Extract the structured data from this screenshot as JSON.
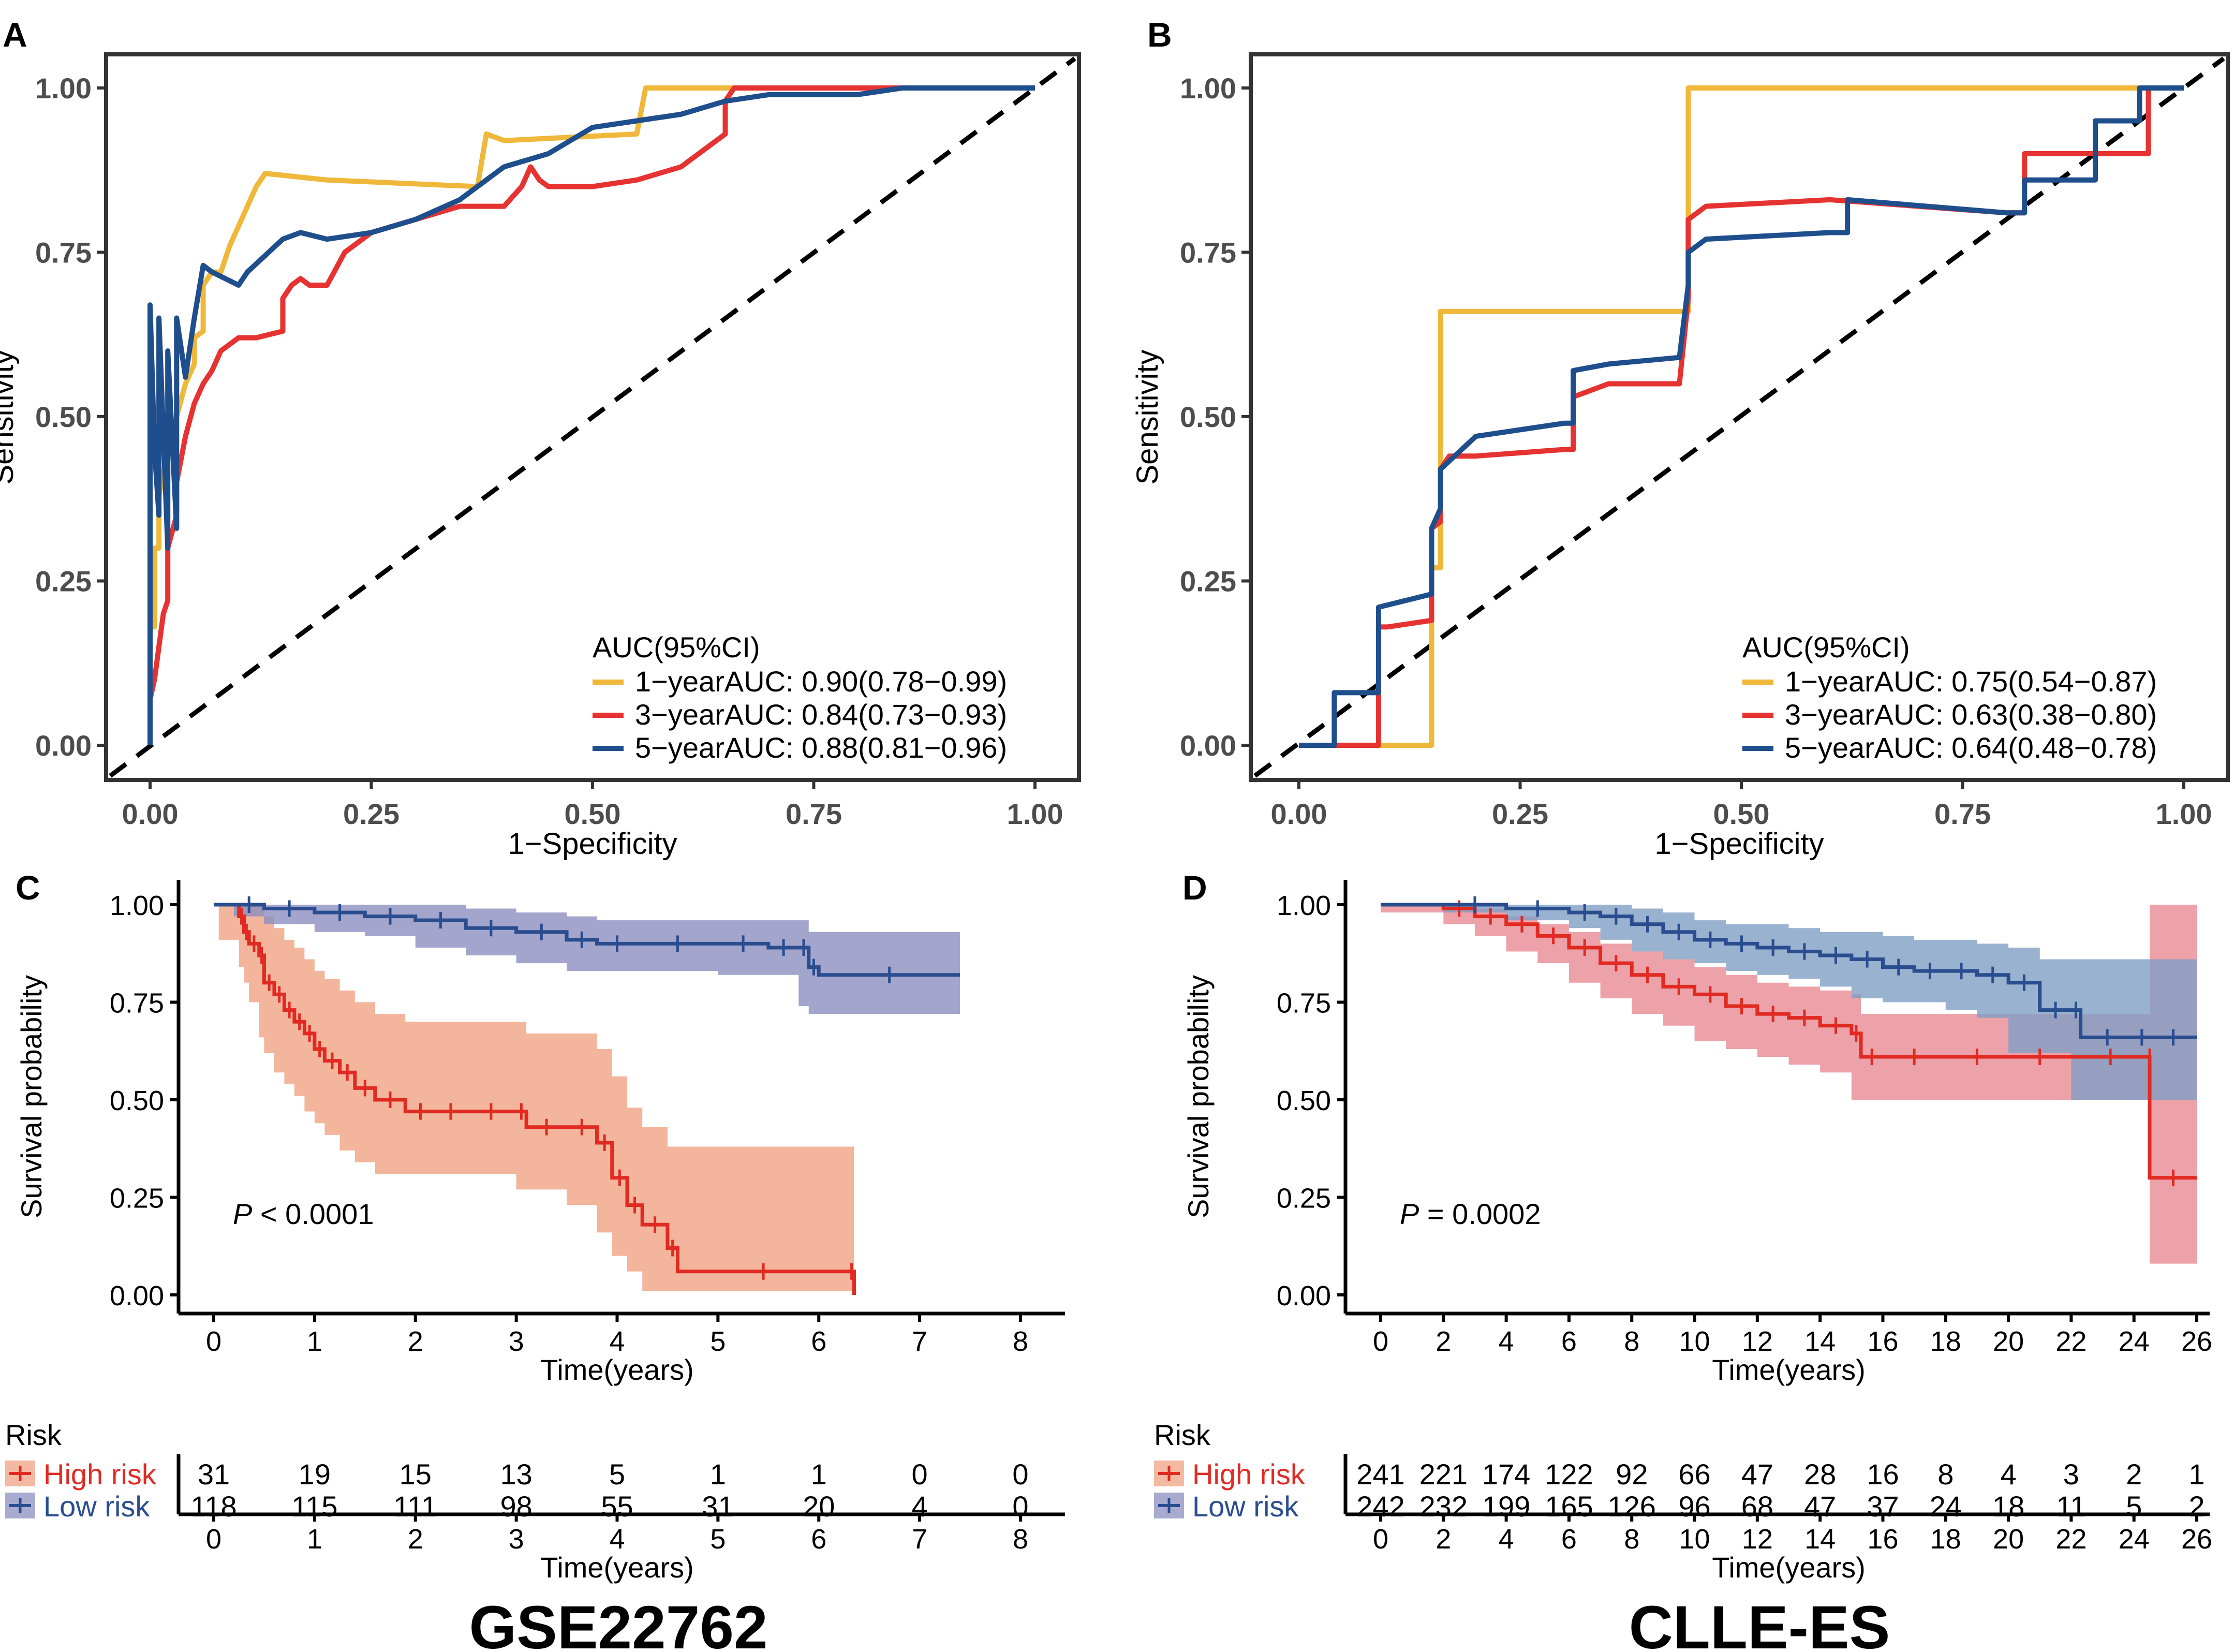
{
  "colors": {
    "year1": "#EFB83A",
    "year3": "#E63331",
    "year5": "#1F4E8C",
    "high": "#E02A22",
    "low": "#2A4D8F",
    "high_band": "#F0A283",
    "low_band": "#8C8EC0",
    "high_band_d": "#E98A94",
    "low_band_d": "#7F9FC4"
  },
  "chart_data": [
    {
      "panel": "A",
      "type": "line",
      "kind": "roc",
      "xlabel": "1−Specificity",
      "ylabel": "Sensitivity",
      "xlim": [
        0,
        1
      ],
      "ylim": [
        0,
        1
      ],
      "ticks": [
        "0.00",
        "0.25",
        "0.50",
        "0.75",
        "1.00"
      ],
      "legend_title": "AUC(95%CI)",
      "legend": [
        {
          "label": "1−yearAUC: 0.90(0.78−0.99)",
          "color": "year1"
        },
        {
          "label": "3−yearAUC: 0.84(0.73−0.93)",
          "color": "year3"
        },
        {
          "label": "5−yearAUC: 0.88(0.81−0.96)",
          "color": "year5"
        }
      ],
      "series": [
        {
          "name": "1-year",
          "color": "year1",
          "x": [
            0,
            0,
            0.005,
            0.005,
            0.01,
            0.01,
            0.02,
            0.03,
            0.04,
            0.05,
            0.05,
            0.06,
            0.06,
            0.07,
            0.08,
            0.09,
            0.1,
            0.11,
            0.12,
            0.13,
            0.2,
            0.37,
            0.38,
            0.4,
            0.55,
            0.56,
            0.57,
            0.8,
            0.97,
            1
          ],
          "y": [
            0,
            0.18,
            0.18,
            0.3,
            0.3,
            0.38,
            0.45,
            0.5,
            0.55,
            0.58,
            0.62,
            0.63,
            0.7,
            0.72,
            0.72,
            0.76,
            0.79,
            0.82,
            0.85,
            0.87,
            0.86,
            0.85,
            0.93,
            0.92,
            0.93,
            1,
            1,
            1,
            1,
            1
          ]
        },
        {
          "name": "3-year",
          "color": "year3",
          "x": [
            0,
            0.005,
            0.01,
            0.015,
            0.02,
            0.02,
            0.03,
            0.03,
            0.04,
            0.05,
            0.06,
            0.07,
            0.08,
            0.1,
            0.12,
            0.15,
            0.15,
            0.16,
            0.17,
            0.18,
            0.2,
            0.22,
            0.25,
            0.3,
            0.35,
            0.4,
            0.42,
            0.43,
            0.44,
            0.45,
            0.5,
            0.55,
            0.6,
            0.65,
            0.65,
            0.66,
            0.7,
            0.8,
            0.9,
            0.97,
            1
          ],
          "y": [
            0.07,
            0.1,
            0.15,
            0.2,
            0.22,
            0.3,
            0.35,
            0.4,
            0.47,
            0.52,
            0.55,
            0.57,
            0.6,
            0.62,
            0.62,
            0.63,
            0.68,
            0.7,
            0.71,
            0.7,
            0.7,
            0.75,
            0.78,
            0.8,
            0.82,
            0.82,
            0.85,
            0.88,
            0.86,
            0.85,
            0.85,
            0.86,
            0.88,
            0.93,
            0.98,
            1,
            1,
            1,
            1,
            1,
            1
          ]
        },
        {
          "name": "5-year",
          "color": "year5",
          "x": [
            0,
            0,
            0.005,
            0.01,
            0.01,
            0.02,
            0.02,
            0.03,
            0.03,
            0.04,
            0.05,
            0.06,
            0.07,
            0.1,
            0.11,
            0.15,
            0.17,
            0.2,
            0.25,
            0.3,
            0.35,
            0.4,
            0.45,
            0.5,
            0.55,
            0.6,
            0.65,
            0.7,
            0.8,
            0.85,
            0.9,
            1
          ],
          "y": [
            0,
            0.67,
            0.45,
            0.35,
            0.65,
            0.3,
            0.6,
            0.33,
            0.65,
            0.56,
            0.65,
            0.73,
            0.72,
            0.7,
            0.72,
            0.77,
            0.78,
            0.77,
            0.78,
            0.8,
            0.83,
            0.88,
            0.9,
            0.94,
            0.95,
            0.96,
            0.98,
            0.99,
            0.99,
            1,
            1,
            1
          ]
        }
      ]
    },
    {
      "panel": "B",
      "type": "line",
      "kind": "roc",
      "xlabel": "1−Specificity",
      "ylabel": "Sensitivity",
      "xlim": [
        0,
        1
      ],
      "ylim": [
        0,
        1
      ],
      "ticks": [
        "0.00",
        "0.25",
        "0.50",
        "0.75",
        "1.00"
      ],
      "legend_title": "AUC(95%CI)",
      "legend": [
        {
          "label": "1−yearAUC: 0.75(0.54−0.87)",
          "color": "year1"
        },
        {
          "label": "3−yearAUC: 0.63(0.38−0.80)",
          "color": "year3"
        },
        {
          "label": "5−yearAUC: 0.64(0.48−0.78)",
          "color": "year5"
        }
      ],
      "series": [
        {
          "name": "1-year",
          "color": "year1",
          "x": [
            0,
            0.15,
            0.15,
            0.16,
            0.16,
            0.44,
            0.44,
            1,
            1
          ],
          "y": [
            0,
            0,
            0.27,
            0.27,
            0.66,
            0.66,
            1,
            1,
            1
          ]
        },
        {
          "name": "3-year",
          "color": "year3",
          "x": [
            0,
            0.09,
            0.09,
            0.1,
            0.15,
            0.15,
            0.16,
            0.16,
            0.17,
            0.2,
            0.3,
            0.31,
            0.31,
            0.35,
            0.43,
            0.44,
            0.44,
            0.46,
            0.6,
            0.7,
            0.8,
            0.82,
            0.82,
            0.96,
            0.96,
            1
          ],
          "y": [
            0,
            0,
            0.18,
            0.18,
            0.19,
            0.33,
            0.34,
            0.42,
            0.44,
            0.44,
            0.45,
            0.45,
            0.53,
            0.55,
            0.55,
            0.68,
            0.8,
            0.82,
            0.83,
            0.82,
            0.81,
            0.81,
            0.9,
            0.9,
            1,
            1
          ]
        },
        {
          "name": "5-year",
          "color": "year5",
          "x": [
            0,
            0.04,
            0.04,
            0.09,
            0.09,
            0.15,
            0.15,
            0.16,
            0.16,
            0.2,
            0.3,
            0.31,
            0.31,
            0.35,
            0.43,
            0.44,
            0.44,
            0.46,
            0.6,
            0.62,
            0.62,
            0.8,
            0.82,
            0.82,
            0.9,
            0.9,
            0.95,
            0.95,
            1
          ],
          "y": [
            0,
            0,
            0.08,
            0.08,
            0.21,
            0.23,
            0.33,
            0.36,
            0.42,
            0.47,
            0.49,
            0.49,
            0.57,
            0.58,
            0.59,
            0.7,
            0.75,
            0.77,
            0.78,
            0.78,
            0.83,
            0.81,
            0.81,
            0.86,
            0.86,
            0.95,
            0.95,
            1,
            1
          ]
        }
      ]
    },
    {
      "panel": "C",
      "type": "line",
      "kind": "survival",
      "dataset": "GSE22762",
      "xlabel": "Time(years)",
      "ylabel": "Survival probability",
      "xlim": [
        0,
        8
      ],
      "ylim": [
        0,
        1
      ],
      "xticks": [
        "0",
        "1",
        "2",
        "3",
        "4",
        "5",
        "6",
        "7",
        "8"
      ],
      "yticks": [
        "0.00",
        "0.25",
        "0.50",
        "0.75",
        "1.00"
      ],
      "pvalue_italic": "P",
      "pvalue_rest": " < 0.0001",
      "series": [
        {
          "name": "High risk",
          "color": "high",
          "band": "high_band",
          "x": [
            0.05,
            0.25,
            0.3,
            0.35,
            0.45,
            0.5,
            0.6,
            0.7,
            0.8,
            0.9,
            1.0,
            1.1,
            1.25,
            1.4,
            1.6,
            1.9,
            2.2,
            2.5,
            3.0,
            3.1,
            3.5,
            3.8,
            3.95,
            4.1,
            4.25,
            4.5,
            4.6,
            6.3,
            6.35
          ],
          "y": [
            1.0,
            0.97,
            0.93,
            0.9,
            0.87,
            0.8,
            0.77,
            0.73,
            0.7,
            0.67,
            0.63,
            0.6,
            0.57,
            0.53,
            0.5,
            0.47,
            0.47,
            0.47,
            0.47,
            0.43,
            0.43,
            0.39,
            0.3,
            0.23,
            0.18,
            0.12,
            0.06,
            0.06,
            0.0
          ],
          "upper": [
            1.0,
            1.0,
            1.0,
            1.0,
            1.0,
            0.97,
            0.94,
            0.91,
            0.89,
            0.86,
            0.83,
            0.81,
            0.78,
            0.75,
            0.72,
            0.7,
            0.7,
            0.7,
            0.7,
            0.67,
            0.67,
            0.63,
            0.56,
            0.48,
            0.43,
            0.38,
            0.38,
            0.38,
            0.38
          ],
          "lower": [
            1.0,
            0.91,
            0.84,
            0.8,
            0.75,
            0.66,
            0.62,
            0.57,
            0.54,
            0.51,
            0.47,
            0.44,
            0.41,
            0.37,
            0.34,
            0.31,
            0.31,
            0.31,
            0.31,
            0.27,
            0.27,
            0.23,
            0.16,
            0.1,
            0.06,
            0.01,
            0.01,
            0.01,
            0.01
          ]
        },
        {
          "name": "Low risk",
          "color": "low",
          "band": "low_band",
          "x": [
            0,
            0.2,
            0.5,
            1.0,
            1.5,
            2.0,
            2.5,
            3.0,
            3.5,
            3.8,
            4.2,
            5.0,
            5.5,
            5.8,
            5.9,
            6.0,
            7.4
          ],
          "y": [
            1.0,
            1.0,
            0.99,
            0.98,
            0.97,
            0.96,
            0.94,
            0.93,
            0.91,
            0.9,
            0.9,
            0.9,
            0.89,
            0.89,
            0.84,
            0.82,
            0.82
          ],
          "upper": [
            1.0,
            1.0,
            1.0,
            1.0,
            1.0,
            1.0,
            0.99,
            0.98,
            0.97,
            0.96,
            0.96,
            0.96,
            0.96,
            0.96,
            0.93,
            0.93,
            0.93
          ],
          "lower": [
            1.0,
            1.0,
            0.97,
            0.95,
            0.93,
            0.92,
            0.89,
            0.87,
            0.85,
            0.83,
            0.83,
            0.83,
            0.82,
            0.82,
            0.74,
            0.72,
            0.72
          ]
        }
      ],
      "risk_table": {
        "title": "Risk",
        "groups": [
          {
            "label": "High risk",
            "color": "high",
            "counts": [
              "31",
              "19",
              "15",
              "13",
              "5",
              "1",
              "1",
              "0",
              "0"
            ]
          },
          {
            "label": "Low risk",
            "color": "low",
            "counts": [
              "118",
              "115",
              "111",
              "98",
              "55",
              "31",
              "20",
              "4",
              "0"
            ]
          }
        ],
        "xticks": [
          "0",
          "1",
          "2",
          "3",
          "4",
          "5",
          "6",
          "7",
          "8"
        ],
        "xlabel": "Time(years)"
      }
    },
    {
      "panel": "D",
      "type": "line",
      "kind": "survival",
      "dataset": "CLLE-ES",
      "xlabel": "Time(years)",
      "ylabel": "Survival probability",
      "xlim": [
        0,
        26
      ],
      "ylim": [
        0,
        1
      ],
      "xticks": [
        "0",
        "2",
        "4",
        "6",
        "8",
        "10",
        "12",
        "14",
        "16",
        "18",
        "20",
        "22",
        "24",
        "26"
      ],
      "yticks": [
        "0.00",
        "0.25",
        "0.50",
        "0.75",
        "1.00"
      ],
      "pvalue_italic": "P",
      "pvalue_rest": " = 0.0002",
      "series": [
        {
          "name": "High risk",
          "color": "high",
          "band": "high_band_d",
          "x": [
            0,
            2,
            3,
            4,
            5,
            6,
            7,
            8,
            9,
            10,
            11,
            12,
            13,
            14,
            15,
            15.3,
            16,
            18,
            20,
            22,
            24.5,
            24.5,
            26
          ],
          "y": [
            1.0,
            0.99,
            0.97,
            0.95,
            0.92,
            0.89,
            0.85,
            0.82,
            0.79,
            0.77,
            0.74,
            0.72,
            0.71,
            0.69,
            0.67,
            0.61,
            0.61,
            0.61,
            0.61,
            0.61,
            0.61,
            0.3,
            0.3
          ],
          "upper": [
            1.0,
            1.0,
            0.99,
            0.97,
            0.95,
            0.93,
            0.9,
            0.88,
            0.86,
            0.84,
            0.82,
            0.8,
            0.79,
            0.78,
            0.77,
            0.72,
            0.72,
            0.72,
            0.72,
            0.72,
            0.72,
            1.0,
            1.0
          ],
          "lower": [
            1.0,
            0.98,
            0.95,
            0.92,
            0.88,
            0.85,
            0.8,
            0.76,
            0.72,
            0.69,
            0.65,
            0.63,
            0.61,
            0.59,
            0.57,
            0.5,
            0.5,
            0.5,
            0.5,
            0.5,
            0.5,
            0.08,
            0.08
          ]
        },
        {
          "name": "Low risk",
          "color": "low",
          "band": "low_band_d",
          "x": [
            0,
            2,
            4,
            6,
            7,
            8,
            9,
            10,
            11,
            12,
            13,
            14,
            15,
            16,
            17,
            18,
            19,
            20,
            21,
            22,
            22.3,
            24,
            24.5,
            26
          ],
          "y": [
            1.0,
            1.0,
            0.99,
            0.98,
            0.97,
            0.95,
            0.93,
            0.91,
            0.9,
            0.89,
            0.88,
            0.87,
            0.86,
            0.84,
            0.83,
            0.83,
            0.82,
            0.8,
            0.73,
            0.73,
            0.66,
            0.66,
            0.66,
            0.66
          ],
          "upper": [
            1.0,
            1.0,
            1.0,
            1.0,
            1.0,
            0.99,
            0.98,
            0.96,
            0.95,
            0.95,
            0.94,
            0.93,
            0.93,
            0.92,
            0.91,
            0.91,
            0.9,
            0.89,
            0.86,
            0.86,
            0.86,
            0.86,
            0.86,
            0.86
          ],
          "lower": [
            1.0,
            1.0,
            0.98,
            0.96,
            0.94,
            0.91,
            0.88,
            0.86,
            0.85,
            0.83,
            0.82,
            0.81,
            0.79,
            0.76,
            0.75,
            0.75,
            0.73,
            0.71,
            0.62,
            0.62,
            0.5,
            0.5,
            0.5,
            0.5
          ]
        }
      ],
      "risk_table": {
        "title": "Risk",
        "groups": [
          {
            "label": "High risk",
            "color": "high",
            "counts": [
              "241",
              "221",
              "174",
              "122",
              "92",
              "66",
              "47",
              "28",
              "16",
              "8",
              "4",
              "3",
              "2",
              "1"
            ]
          },
          {
            "label": "Low risk",
            "color": "low",
            "counts": [
              "242",
              "232",
              "199",
              "165",
              "126",
              "96",
              "68",
              "47",
              "37",
              "24",
              "18",
              "11",
              "5",
              "2"
            ]
          }
        ],
        "xticks": [
          "0",
          "2",
          "4",
          "6",
          "8",
          "10",
          "12",
          "14",
          "16",
          "18",
          "20",
          "22",
          "24",
          "26"
        ],
        "xlabel": "Time(years)"
      }
    }
  ]
}
